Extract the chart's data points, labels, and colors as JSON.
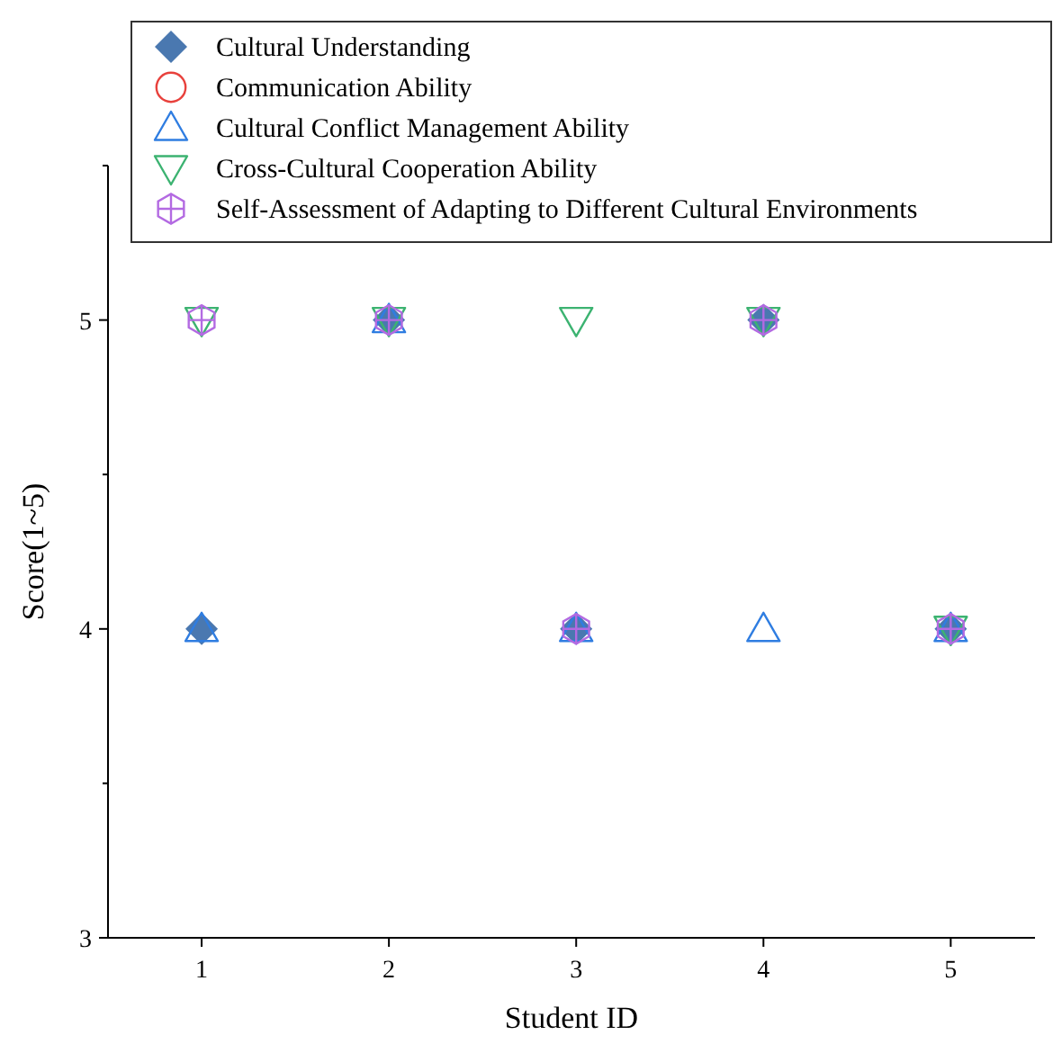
{
  "chart_data": {
    "type": "scatter",
    "xlabel": "Student ID",
    "ylabel": "Score(1~5)",
    "x": [
      1,
      2,
      3,
      4,
      5
    ],
    "xlim": [
      0.5,
      5.45
    ],
    "xticks": [
      1,
      2,
      3,
      4,
      5
    ],
    "ylim": [
      3,
      5.5
    ],
    "yticks": [
      3,
      {
        "value": 3.5,
        "label": null
      },
      4,
      {
        "value": 4.5,
        "label": null
      },
      5,
      {
        "value": 5.5,
        "label": null
      }
    ],
    "legend": "top",
    "grid": false,
    "series": [
      {
        "name": "Cultural Understanding",
        "color": "#4a78b0",
        "marker": "diamond",
        "values": [
          4,
          5,
          4,
          5,
          4
        ]
      },
      {
        "name": "Communication Ability",
        "color": "#e8413c",
        "marker": "circle",
        "values": [
          null,
          null,
          null,
          null,
          null
        ]
      },
      {
        "name": "Cultural Conflict Management Ability",
        "color": "#2f7de1",
        "marker": "triangle",
        "values": [
          4,
          5,
          4,
          4,
          4
        ]
      },
      {
        "name": "Cross-Cultural Cooperation Ability",
        "color": "#3cb371",
        "marker": "triangle-down",
        "values": [
          5,
          5,
          5,
          5,
          4
        ]
      },
      {
        "name": "Self-Assessment of Adapting to Different Cultural Environments",
        "color": "#b36ae2",
        "values": [
          5,
          5,
          4,
          5,
          4
        ]
      }
    ]
  }
}
